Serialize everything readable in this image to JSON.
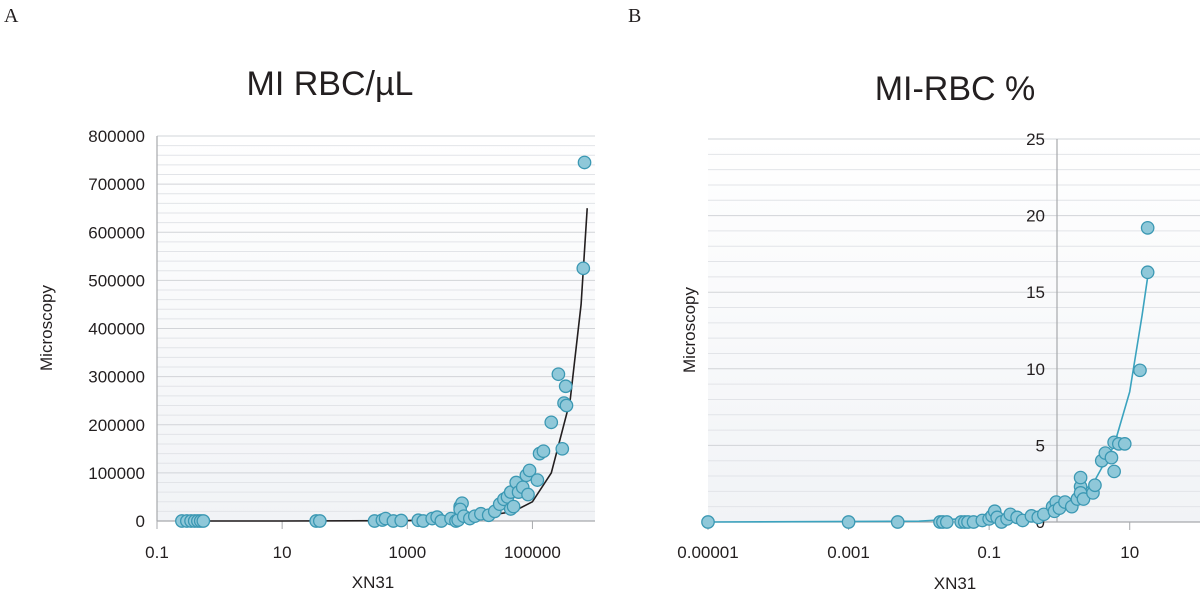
{
  "panels": {
    "a": {
      "letter": "A"
    },
    "b": {
      "letter": "B"
    }
  },
  "chart_data": [
    {
      "type": "scatter",
      "title": "MI RBC/µL",
      "xlabel": "XN31",
      "ylabel": "Microscopy",
      "x_scale": "log",
      "xlim": [
        0.1,
        1000000
      ],
      "ylim": [
        0,
        800000
      ],
      "x_ticks": [
        "0.1",
        "10",
        "1000",
        "100000"
      ],
      "y_ticks": [
        "0",
        "100000",
        "200000",
        "300000",
        "400000",
        "500000",
        "600000",
        "700000",
        "800000"
      ],
      "grid": true,
      "point_color": "#8fc8d9",
      "point_edge_color": "#3b98b3",
      "trend_color": "#231f20",
      "trend_line": {
        "x": [
          0.25,
          10,
          1000,
          10000,
          50000,
          100000,
          200000,
          400000,
          600000,
          750000
        ],
        "y": [
          0,
          100,
          800,
          5000,
          20000,
          40000,
          100000,
          250000,
          450000,
          650000
        ]
      },
      "points": [
        {
          "x": 0.25,
          "y": 0
        },
        {
          "x": 0.3,
          "y": 0
        },
        {
          "x": 0.35,
          "y": 0
        },
        {
          "x": 0.4,
          "y": 0
        },
        {
          "x": 0.45,
          "y": 0
        },
        {
          "x": 0.5,
          "y": 0
        },
        {
          "x": 0.55,
          "y": 0
        },
        {
          "x": 35,
          "y": 0
        },
        {
          "x": 40,
          "y": 0
        },
        {
          "x": 300,
          "y": 0
        },
        {
          "x": 400,
          "y": 2000
        },
        {
          "x": 450,
          "y": 5000
        },
        {
          "x": 600,
          "y": 0
        },
        {
          "x": 800,
          "y": 1000
        },
        {
          "x": 1500,
          "y": 1500
        },
        {
          "x": 1800,
          "y": 0
        },
        {
          "x": 2500,
          "y": 5000
        },
        {
          "x": 3000,
          "y": 8000
        },
        {
          "x": 3500,
          "y": 0
        },
        {
          "x": 5000,
          "y": 5000
        },
        {
          "x": 6000,
          "y": 0
        },
        {
          "x": 6500,
          "y": 2000
        },
        {
          "x": 7000,
          "y": 30000
        },
        {
          "x": 7500,
          "y": 37000
        },
        {
          "x": 7000,
          "y": 24000
        },
        {
          "x": 8000,
          "y": 10000
        },
        {
          "x": 10000,
          "y": 5000
        },
        {
          "x": 12000,
          "y": 10000
        },
        {
          "x": 15000,
          "y": 15000
        },
        {
          "x": 20000,
          "y": 12000
        },
        {
          "x": 25000,
          "y": 20000
        },
        {
          "x": 30000,
          "y": 35000
        },
        {
          "x": 35000,
          "y": 45000
        },
        {
          "x": 40000,
          "y": 50000
        },
        {
          "x": 45000,
          "y": 25000
        },
        {
          "x": 50000,
          "y": 30000
        },
        {
          "x": 45000,
          "y": 60000
        },
        {
          "x": 55000,
          "y": 80000
        },
        {
          "x": 60000,
          "y": 60000
        },
        {
          "x": 70000,
          "y": 70000
        },
        {
          "x": 80000,
          "y": 95000
        },
        {
          "x": 90000,
          "y": 105000
        },
        {
          "x": 85000,
          "y": 55000
        },
        {
          "x": 120000,
          "y": 85000
        },
        {
          "x": 130000,
          "y": 140000
        },
        {
          "x": 150000,
          "y": 145000
        },
        {
          "x": 200000,
          "y": 205000
        },
        {
          "x": 260000,
          "y": 305000
        },
        {
          "x": 300000,
          "y": 150000
        },
        {
          "x": 320000,
          "y": 245000
        },
        {
          "x": 340000,
          "y": 280000
        },
        {
          "x": 350000,
          "y": 240000
        },
        {
          "x": 650000,
          "y": 525000
        },
        {
          "x": 680000,
          "y": 745000
        }
      ]
    },
    {
      "type": "scatter",
      "title": "MI-RBC %",
      "xlabel": "XN31",
      "ylabel": "Microscopy",
      "x_scale": "log",
      "xlim": [
        1e-05,
        100
      ],
      "ylim": [
        0,
        25
      ],
      "x_ticks": [
        "0.00001",
        "0.001",
        "0.1",
        "10"
      ],
      "y_ticks": [
        "0",
        "5",
        "10",
        "15",
        "20",
        "25"
      ],
      "grid": true,
      "point_color": "#8fc8d9",
      "point_edge_color": "#3b98b3",
      "trend_color": "#3ba3bf",
      "trend_line": {
        "x": [
          1e-05,
          0.01,
          0.5,
          1,
          3,
          6,
          10,
          15,
          18
        ],
        "y": [
          0,
          0.05,
          0.5,
          1,
          2.5,
          5,
          8.5,
          13.5,
          16
        ]
      },
      "points": [
        {
          "x": 1e-05,
          "y": 0
        },
        {
          "x": 0.001,
          "y": 0
        },
        {
          "x": 0.005,
          "y": 0
        },
        {
          "x": 0.02,
          "y": 0
        },
        {
          "x": 0.022,
          "y": 0
        },
        {
          "x": 0.025,
          "y": 0
        },
        {
          "x": 0.04,
          "y": 0
        },
        {
          "x": 0.045,
          "y": 0
        },
        {
          "x": 0.05,
          "y": 0
        },
        {
          "x": 0.06,
          "y": 0
        },
        {
          "x": 0.08,
          "y": 0.1
        },
        {
          "x": 0.1,
          "y": 0.2
        },
        {
          "x": 0.11,
          "y": 0.4
        },
        {
          "x": 0.12,
          "y": 0.7
        },
        {
          "x": 0.13,
          "y": 0.3
        },
        {
          "x": 0.15,
          "y": 0
        },
        {
          "x": 0.18,
          "y": 0.2
        },
        {
          "x": 0.2,
          "y": 0.5
        },
        {
          "x": 0.25,
          "y": 0.3
        },
        {
          "x": 0.3,
          "y": 0.1
        },
        {
          "x": 0.4,
          "y": 0.4
        },
        {
          "x": 0.5,
          "y": 0.3
        },
        {
          "x": 0.6,
          "y": 0.5
        },
        {
          "x": 0.8,
          "y": 1.0
        },
        {
          "x": 0.9,
          "y": 1.3
        },
        {
          "x": 0.85,
          "y": 0.7
        },
        {
          "x": 1.0,
          "y": 0.9
        },
        {
          "x": 1.2,
          "y": 1.3
        },
        {
          "x": 1.5,
          "y": 1.0
        },
        {
          "x": 1.8,
          "y": 1.5
        },
        {
          "x": 2.0,
          "y": 2.3
        },
        {
          "x": 2.0,
          "y": 2.9
        },
        {
          "x": 2.0,
          "y": 1.9
        },
        {
          "x": 2.2,
          "y": 1.5
        },
        {
          "x": 3.0,
          "y": 1.9
        },
        {
          "x": 3.2,
          "y": 2.4
        },
        {
          "x": 4.0,
          "y": 4.0
        },
        {
          "x": 4.5,
          "y": 4.5
        },
        {
          "x": 5.5,
          "y": 4.2
        },
        {
          "x": 6.0,
          "y": 5.2
        },
        {
          "x": 6.0,
          "y": 3.3
        },
        {
          "x": 7.0,
          "y": 5.1
        },
        {
          "x": 8.5,
          "y": 5.1
        },
        {
          "x": 14.0,
          "y": 9.9
        },
        {
          "x": 18.0,
          "y": 16.3
        },
        {
          "x": 18.0,
          "y": 19.2
        }
      ]
    }
  ]
}
